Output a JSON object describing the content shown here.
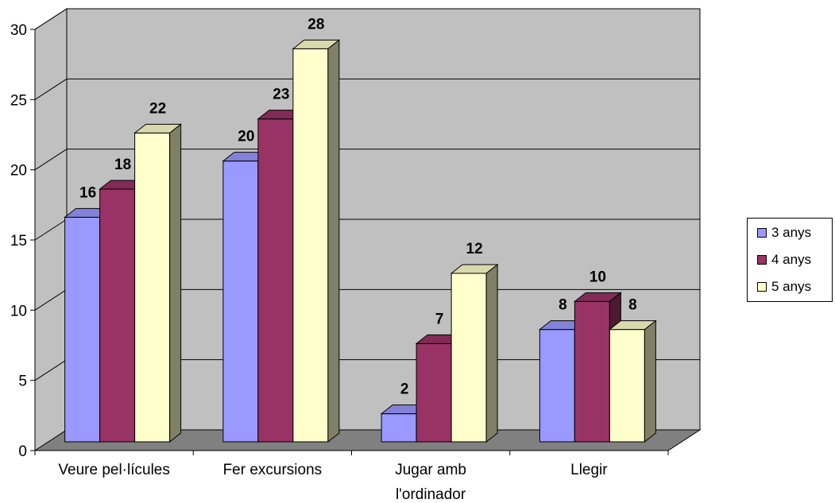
{
  "chart_data": {
    "type": "bar",
    "categories": [
      "Veure pel·lícules",
      "Fer excursions",
      "Jugar amb l'ordinador",
      "Llegir"
    ],
    "category_lines": [
      [
        "Veure pel·lícules"
      ],
      [
        "Fer excursions"
      ],
      [
        "Jugar amb",
        "l'ordinador"
      ],
      [
        "Llegir"
      ]
    ],
    "series": [
      {
        "name": "3 anys",
        "values": [
          16,
          20,
          2,
          8
        ],
        "color": "#9999ff"
      },
      {
        "name": "4 anys",
        "values": [
          18,
          23,
          7,
          10
        ],
        "color": "#993366"
      },
      {
        "name": "5 anys",
        "values": [
          22,
          28,
          12,
          8
        ],
        "color": "#ffffcc"
      }
    ],
    "yticks": [
      0,
      5,
      10,
      15,
      20,
      25,
      30
    ],
    "ylim": [
      0,
      30
    ],
    "title": "",
    "xlabel": "",
    "ylabel": "",
    "grid": true,
    "legend_position": "right",
    "wall_color": "#c0c0c0",
    "floor_color": "#808080"
  }
}
